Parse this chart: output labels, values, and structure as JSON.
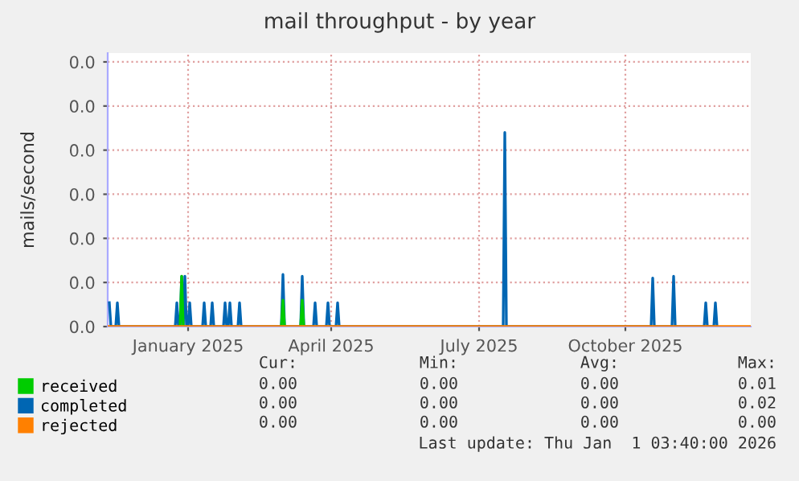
{
  "chart_data": {
    "type": "line",
    "title": "mail throughput - by year",
    "ylabel": "mails/second",
    "xlim": [
      "2024-11-27",
      "2026-01-01"
    ],
    "xticks": [
      {
        "value": "2025-01-16",
        "label": "January 2025"
      },
      {
        "value": "2025-04-15",
        "label": "April 2025"
      },
      {
        "value": "2025-07-16",
        "label": "July 2025"
      },
      {
        "value": "2025-10-15",
        "label": "October 2025"
      }
    ],
    "ylim": [
      0,
      0.031
    ],
    "yticks": [
      {
        "value": 0,
        "label": "0.0"
      },
      {
        "value": 0.005,
        "label": "0.0"
      },
      {
        "value": 0.01,
        "label": "0.0"
      },
      {
        "value": 0.015,
        "label": "0.0"
      },
      {
        "value": 0.02,
        "label": "0.0"
      },
      {
        "value": 0.025,
        "label": "0.0"
      },
      {
        "value": 0.03,
        "label": "0.0"
      }
    ],
    "grid": true,
    "legend": "bottom left",
    "series": [
      {
        "name": "received",
        "color": "#00cc00",
        "x": [
          "2025-01-11",
          "2025-01-12",
          "2025-01-13",
          "2025-01-14",
          "2025-03-15",
          "2025-03-16",
          "2025-03-17",
          "2025-03-18",
          "2025-03-27",
          "2025-03-28",
          "2025-03-29"
        ],
        "values": [
          0,
          0.0057,
          0,
          null,
          0,
          0.003,
          0,
          null,
          0,
          0.003,
          0
        ]
      },
      {
        "name": "completed",
        "color": "#0066b3",
        "x": [
          "2024-11-28",
          "2024-11-29",
          "2024-12-02",
          "2024-12-03",
          "2024-12-04",
          "2025-01-08",
          "2025-01-09",
          "2025-01-10",
          "2025-01-11",
          "2025-01-12",
          "2025-01-13",
          "2025-01-14",
          "2025-01-15",
          "2025-01-16",
          "2025-01-17",
          "2025-01-18",
          "2025-01-25",
          "2025-01-26",
          "2025-01-27",
          "2025-01-30",
          "2025-01-31",
          "2025-02-01",
          "2025-02-07",
          "2025-02-08",
          "2025-02-09",
          "2025-02-10",
          "2025-02-11",
          "2025-02-12",
          "2025-02-16",
          "2025-02-17",
          "2025-02-18",
          "2025-03-15",
          "2025-03-16",
          "2025-03-17",
          "2025-03-27",
          "2025-03-28",
          "2025-03-29",
          "2025-04-04",
          "2025-04-05",
          "2025-04-06",
          "2025-04-12",
          "2025-04-13",
          "2025-04-14",
          "2025-04-18",
          "2025-04-19",
          "2025-04-20",
          "2025-07-31",
          "2025-08-01",
          "2025-08-02",
          "2025-10-31",
          "2025-11-01",
          "2025-11-02",
          "2025-11-13",
          "2025-11-14",
          "2025-11-15",
          "2025-12-03",
          "2025-12-04",
          "2025-12-05",
          "2025-12-09",
          "2025-12-10",
          "2025-12-11"
        ],
        "values": [
          0.0027,
          0,
          0,
          0.0027,
          0,
          0,
          0.0027,
          0,
          0,
          0.0057,
          0,
          0.0057,
          0,
          0,
          0.0027,
          0,
          0,
          0.0027,
          0,
          0,
          0.0027,
          0,
          0,
          0.0027,
          0,
          0,
          0.0027,
          0,
          0,
          0.0027,
          0,
          0,
          0.0059,
          0,
          0,
          0.0057,
          0,
          0,
          0.0027,
          0,
          0,
          0.0027,
          0,
          0,
          0.0027,
          0,
          0,
          0.022,
          0,
          0,
          0.0055,
          0,
          0,
          0.0057,
          0,
          0,
          0.0027,
          0,
          0,
          0.0027,
          0
        ]
      },
      {
        "name": "rejected",
        "color": "#ff8000",
        "x": [
          "2024-11-27",
          "2026-01-01"
        ],
        "values": [
          0,
          0
        ]
      }
    ],
    "annotations": [
      "Cur:",
      "Min:",
      "Avg:",
      "Max:",
      "0.00",
      "0.00",
      "0.00",
      "0.01",
      "0.00",
      "0.00",
      "0.00",
      "0.02",
      "0.00",
      "0.00",
      "0.00",
      "0.00",
      "Last update: Thu Jan  1 03:40:00 2026"
    ]
  }
}
